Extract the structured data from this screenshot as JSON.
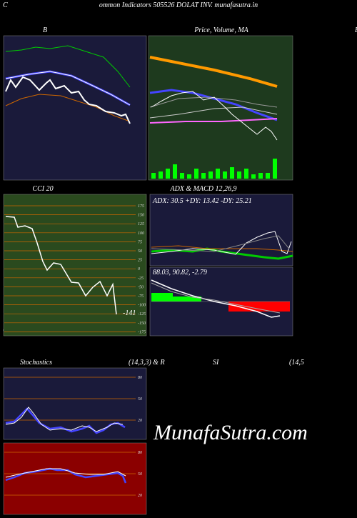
{
  "header": {
    "left": "C",
    "title": "ommon  Indicators 505526  DOLAT INV. munafasutra.in",
    "bottom_left": "C"
  },
  "panels": {
    "bands": {
      "title": "B"
    },
    "price": {
      "title": "Price,  Volume,  MA",
      "right": "B"
    },
    "cci": {
      "title": "CCI 20",
      "ticks": [
        "175",
        "150",
        "125",
        "100",
        "75",
        "50",
        "25",
        "0",
        "-25",
        "-50",
        "-75",
        "-100",
        "-125",
        "-150",
        "-175"
      ],
      "last": "-141"
    },
    "adx": {
      "title": "ADX  & MACD 12,26,9",
      "text": "ADX: 30.5 +DY: 13.42  -DY: 25.21"
    },
    "macd": {
      "text": "88.03,  90.82,  -2.79"
    },
    "stoch": {
      "title": "Stochastics",
      "params": "(14,3,3) & R",
      "ticks": [
        "80",
        "50",
        "20"
      ]
    },
    "rsi": {
      "title": "SI",
      "params": "(14,5",
      "ticks": [
        "80",
        "50",
        "20"
      ]
    }
  },
  "watermark": "MunafaSutra.com"
}
